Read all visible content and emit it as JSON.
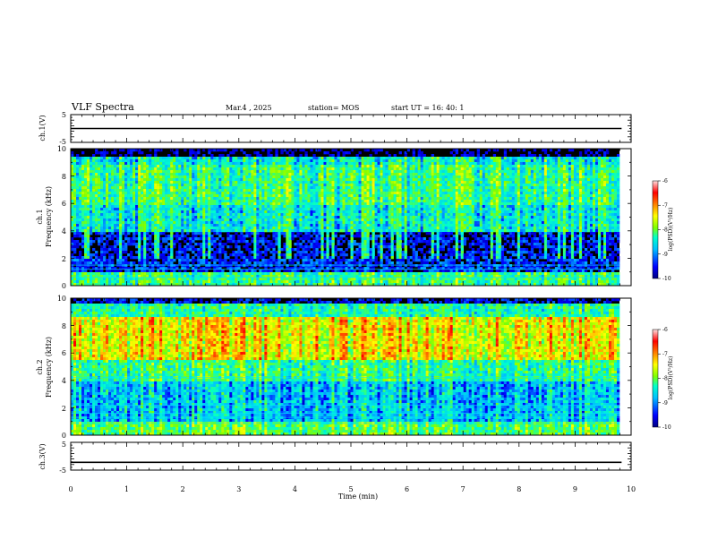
{
  "header": {
    "title": "VLF Spectra",
    "date": "Mar.4 , 2025",
    "station": "station= MOS",
    "start": "start  UT =   16: 40: 1"
  },
  "chart_data": [
    {
      "type": "line",
      "name": "ch1-waveform",
      "ylabel": "ch.1(V)",
      "ylim": [
        -5,
        5
      ],
      "yticks": [
        "5",
        "-5"
      ],
      "xlim": [
        0,
        10
      ],
      "x": [
        0,
        9.83
      ],
      "y": [
        0,
        0
      ]
    },
    {
      "type": "heatmap",
      "name": "ch1-spectrogram",
      "ylabel": "ch.1\nFrequency (kHz)",
      "ylim": [
        0,
        10
      ],
      "yticks": [
        "10",
        "8",
        "6",
        "4",
        "2",
        "0"
      ],
      "xlim": [
        0,
        9.83
      ],
      "colorbar": {
        "label": "log(PSD)(V²/Hz)",
        "range": [
          -10,
          -6
        ],
        "ticks": [
          "-6",
          "-7",
          "-8",
          "-9",
          "-10"
        ]
      }
    },
    {
      "type": "heatmap",
      "name": "ch2-spectrogram",
      "ylabel": "ch.2\nFrequency (kHz)",
      "ylim": [
        0,
        10
      ],
      "yticks": [
        "10",
        "8",
        "6",
        "4",
        "2",
        "0"
      ],
      "xlim": [
        0,
        9.83
      ],
      "colorbar": {
        "label": "log(PSD)(V²/Hz)",
        "range": [
          -10,
          -6
        ],
        "ticks": [
          "-6",
          "-7",
          "-8",
          "-9",
          "-10"
        ]
      }
    },
    {
      "type": "line",
      "name": "ch3-waveform",
      "ylabel": "ch.3(V)",
      "ylim": [
        -5,
        5
      ],
      "yticks": [
        "5",
        "-5"
      ],
      "xlim": [
        0,
        10
      ],
      "x": [
        0,
        9.83
      ],
      "y": [
        -2.2,
        -2.2
      ]
    }
  ],
  "xaxis": {
    "label": "Time  (min)",
    "range": [
      0,
      10
    ],
    "ticks": [
      "0",
      "1",
      "2",
      "3",
      "4",
      "5",
      "6",
      "7",
      "8",
      "9",
      "10"
    ]
  },
  "labels": {
    "ch1": "ch.1(V)",
    "ch1_spec_a": "ch.1",
    "ch1_spec_b": "Frequency (kHz)",
    "ch2_spec_a": "ch.2",
    "ch2_spec_b": "Frequency (kHz)",
    "ch3": "ch.3(V)",
    "cbar1": "log(PSD)(V²/Hz)",
    "cbar2": "log(PSD)(V²/Hz)"
  },
  "colors": {
    "colormap": [
      "#00007f",
      "#0000ff",
      "#007fff",
      "#00ffff",
      "#7fff7f",
      "#ffff00",
      "#ff7f00",
      "#ff0000",
      "#ffc8c8"
    ],
    "background": "#000000"
  }
}
